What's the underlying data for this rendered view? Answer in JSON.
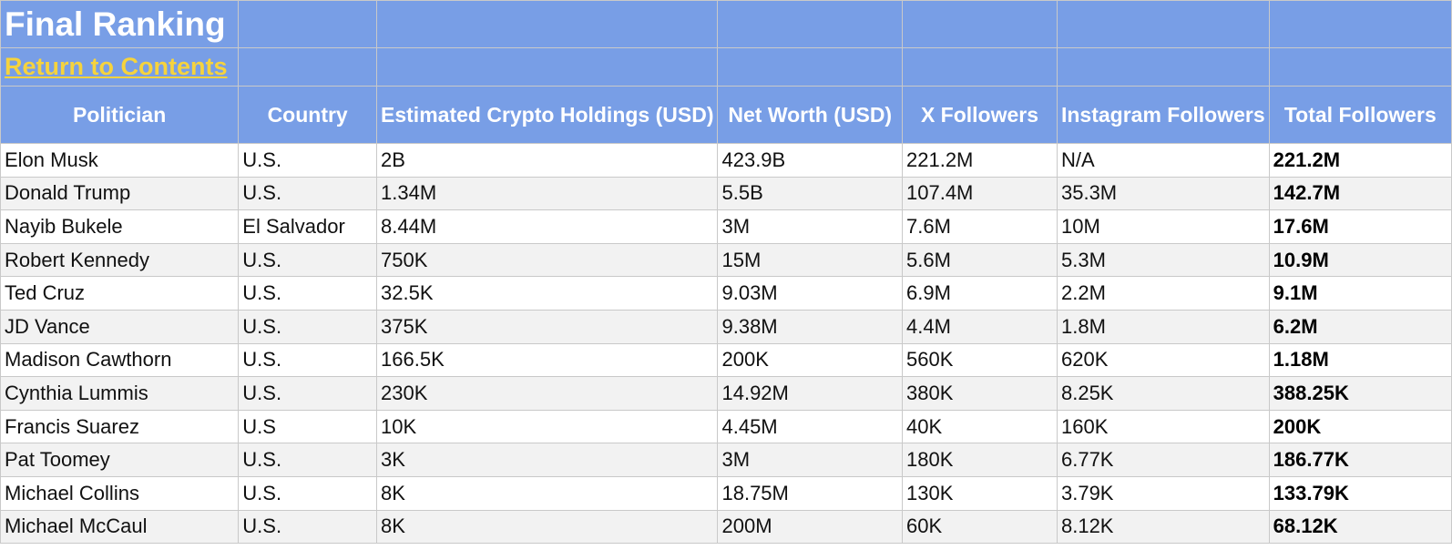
{
  "title": "Final Ranking",
  "return_link": "Return to Contents",
  "columns": [
    "Politician",
    "Country",
    "Estimated Crypto Holdings (USD)",
    "Net Worth (USD)",
    "X Followers",
    "Instagram Followers",
    "Total Followers"
  ],
  "rows": [
    [
      "Elon Musk",
      "U.S.",
      "2B",
      "423.9B",
      "221.2M",
      "N/A",
      "221.2M"
    ],
    [
      "Donald Trump",
      "U.S.",
      "1.34M",
      "5.5B",
      "107.4M",
      "35.3M",
      "142.7M"
    ],
    [
      "Nayib Bukele",
      "El Salvador",
      "8.44M",
      "3M",
      "7.6M",
      "10M",
      "17.6M"
    ],
    [
      "Robert Kennedy",
      "U.S.",
      "750K",
      "15M",
      "5.6M",
      "5.3M",
      "10.9M"
    ],
    [
      "Ted Cruz",
      "U.S.",
      "32.5K",
      "9.03M",
      "6.9M",
      "2.2M",
      "9.1M"
    ],
    [
      "JD Vance",
      "U.S.",
      "375K",
      "9.38M",
      "4.4M",
      "1.8M",
      "6.2M"
    ],
    [
      "Madison Cawthorn",
      "U.S.",
      "166.5K",
      "200K",
      "560K",
      "620K",
      "1.18M"
    ],
    [
      "Cynthia Lummis",
      "U.S.",
      "230K",
      "14.92M",
      "380K",
      "8.25K",
      "388.25K"
    ],
    [
      "Francis Suarez",
      "U.S",
      "10K",
      "4.45M",
      "40K",
      "160K",
      "200K"
    ],
    [
      "Pat Toomey",
      "U.S.",
      "3K",
      "3M",
      "180K",
      "6.77K",
      "186.77K"
    ],
    [
      "Michael Collins",
      "U.S.",
      "8K",
      "18.75M",
      "130K",
      "3.79K",
      "133.79K"
    ],
    [
      "Michael McCaul",
      "U.S.",
      "8K",
      "200M",
      "60K",
      "8.12K",
      "68.12K"
    ]
  ],
  "colors": {
    "header_bg": "#789ee6",
    "link_color": "#f6d33d",
    "alt_row_bg": "#f2f2f2"
  }
}
